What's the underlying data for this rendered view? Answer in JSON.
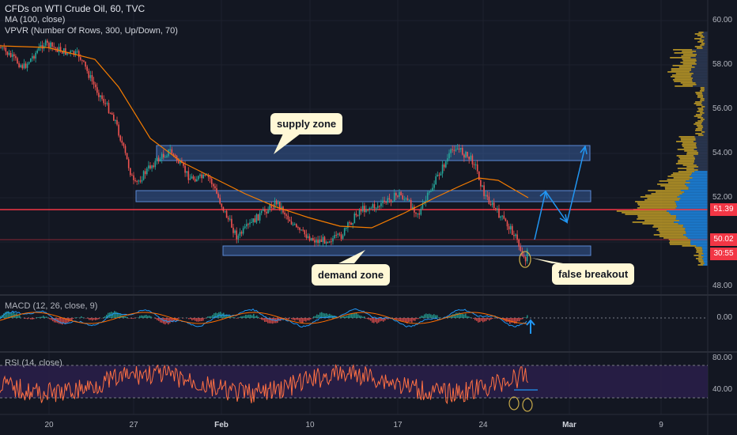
{
  "legend": {
    "title": "CFDs on WTI Crude Oil, 60, TVC",
    "ma": "MA (100, close)",
    "vpvr": "VPVR (Number Of Rows, 300, Up/Down, 70)"
  },
  "annotations": {
    "supply": "supply zone",
    "demand": "demand zone",
    "false_breakout": "false breakout"
  },
  "price_axis": [
    "60.00",
    "58.00",
    "56.00",
    "54.00",
    "52.00",
    "48.00"
  ],
  "price_tags": {
    "red": "51.39",
    "current": "50.02",
    "countdown": "30:55"
  },
  "macd": {
    "title": "MACD (12, 26, close, 9)",
    "axis": "0.00"
  },
  "rsi": {
    "title": "RSI (14, close)",
    "axis_top": "80.00",
    "axis_mid": "40.00"
  },
  "dates": [
    "20",
    "27",
    "Feb",
    "10",
    "17",
    "24",
    "Mar",
    "9"
  ],
  "colors": {
    "background": "#131722",
    "up": "#26a69a",
    "down": "#ef5350",
    "ma": "#f57c00",
    "zone": "#3d6bb3",
    "redline": "#f23645",
    "rsi_band": "#2a1f4a",
    "rsi_line": "#ff7043"
  }
}
